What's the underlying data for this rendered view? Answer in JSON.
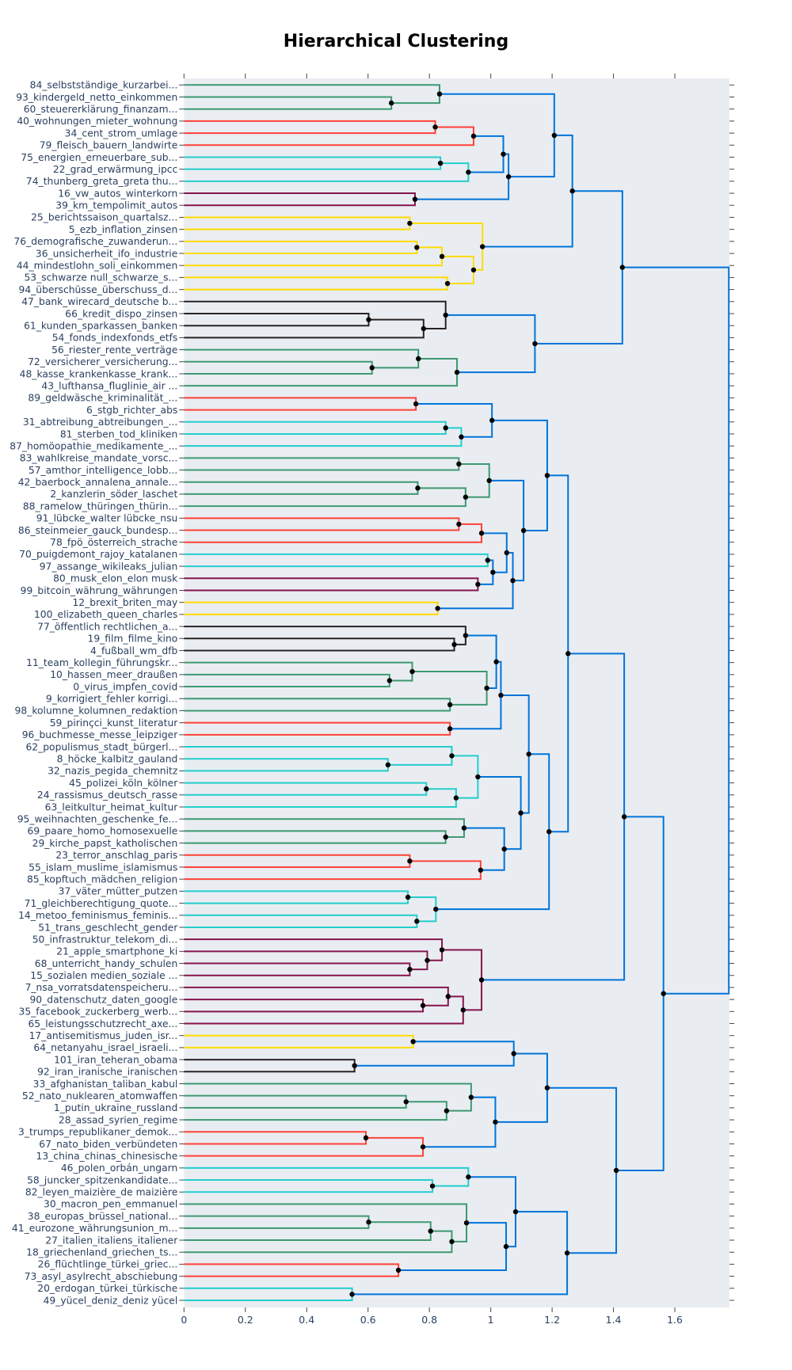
{
  "chart_data": {
    "type": "dendrogram",
    "title": "Hierarchical Clustering",
    "orientation": "horizontal",
    "xlim": [
      0,
      1.778
    ],
    "x_ticks": [
      "0",
      "0.2",
      "0.4",
      "0.6",
      "0.8",
      "1",
      "1.2",
      "1.4",
      "1.6"
    ],
    "x_tick_values": [
      0,
      0.2,
      0.4,
      0.6,
      0.8,
      1.0,
      1.2,
      1.4,
      1.6
    ],
    "grid": false,
    "plot_background": "#e9edf2",
    "colors": {
      "b": "#0074d9",
      "g": "#3d9970",
      "r": "#ff4136",
      "c": "#23cdcd",
      "p": "#85144b",
      "y": "#ffdc00",
      "k": "#282323",
      "dot": "#000000"
    },
    "leaves": [
      "84_selbstständige_kurzarbei...",
      "93_kindergeld_netto_einkommen",
      "60_steuererklärung_finanzam...",
      "40_wohnungen_mieter_wohnung",
      "34_cent_strom_umlage",
      "79_fleisch_bauern_landwirte",
      "75_energien_erneuerbare_sub...",
      "22_grad_erwärmung_ipcc",
      "74_thunberg_greta_greta thu...",
      "16_vw_autos_winterkorn",
      "39_km_tempolimit_autos",
      "25_berichtssaison_quartalsz...",
      "5_ezb_inflation_zinsen",
      "76_demografische_zuwanderun...",
      "36_unsicherheit_ifo_industrie",
      "44_mindestlohn_soli_einkommen",
      "53_schwarze null_schwarze_s...",
      "94_überschüsse_überschuss_d...",
      "47_bank_wirecard_deutsche b...",
      "66_kredit_dispo_zinsen",
      "61_kunden_sparkassen_banken",
      "54_fonds_indexfonds_etfs",
      "56_riester_rente_verträge",
      "72_versicherer_versicherung...",
      "48_kasse_krankenkasse_krank...",
      "43_lufthansa_fluglinie_air ...",
      "89_geldwäsche_kriminalität_...",
      "6_stgb_richter_abs",
      "31_abtreibung_abtreibungen_...",
      "81_sterben_tod_kliniken",
      "87_homöopathie_medikamente_...",
      "83_wahlkreise_mandate_vorsc...",
      "57_amthor_intelligence_lobb...",
      "42_baerbock_annalena_annale...",
      "2_kanzlerin_söder_laschet",
      "88_ramelow_thüringen_thürin...",
      "91_lübcke_walter lübcke_nsu",
      "86_steinmeier_gauck_bundesp...",
      "78_fpö_österreich_strache",
      "70_puigdemont_rajoy_katalanen",
      "97_assange_wikileaks_julian",
      "80_musk_elon_elon musk",
      "99_bitcoin_währung_währungen",
      "12_brexit_briten_may",
      "100_elizabeth_queen_charles",
      "77_öffentlich rechtlichen_a...",
      "19_film_filme_kino",
      "4_fußball_wm_dfb",
      "11_team_kollegin_führungskr...",
      "10_hassen_meer_draußen",
      "0_virus_impfen_covid",
      "9_korrigiert_fehler korrigi...",
      "98_kolumne_kolumnen_redaktion",
      "59_pirinçci_kunst_literatur",
      "96_buchmesse_messe_leipziger",
      "62_populismus_stadt_bürgerl...",
      "8_höcke_kalbitz_gauland",
      "32_nazis_pegida_chemnitz",
      "45_polizei_köln_kölner",
      "24_rassismus_deutsch_rasse",
      "63_leitkultur_heimat_kultur",
      "95_weihnachten_geschenke_fe...",
      "69_paare_homo_homosexuelle",
      "29_kirche_papst_katholischen",
      "23_terror_anschlag_paris",
      "55_islam_muslime_islamismus",
      "85_kopftuch_mädchen_religion",
      "37_väter_mütter_putzen",
      "71_gleichberechtigung_quote...",
      "14_metoo_feminismus_feminis...",
      "51_trans_geschlecht_gender",
      "50_infrastruktur_telekom_di...",
      "21_apple_smartphone_ki",
      "68_unterricht_handy_schulen",
      "15_sozialen medien_soziale ...",
      "7_nsa_vorratsdatenspeicheru...",
      "90_datenschutz_daten_google",
      "35_facebook_zuckerberg_werb...",
      "65_leistungsschutzrecht_axe...",
      "17_antisemitismus_juden_isr...",
      "64_netanyahu_israel_israeli...",
      "101_iran_teheran_obama",
      "92_iran_iranische_iranischen",
      "33_afghanistan_taliban_kabul",
      "52_nato_nuklearen_atomwaffen",
      "1_putin_ukraine_russland",
      "28_assad_syrien_regime",
      "3_trumps_republikaner_demok...",
      "67_nato_biden_verbündeten",
      "13_china_chinas_chinesische",
      "46_polen_orbán_ungarn",
      "58_juncker_spitzenkandidate...",
      "82_leyen_maizière_de maizière",
      "30_macron_pen_emmanuel",
      "38_europas_brüssel_national...",
      "41_eurozone_währungsunion_m...",
      "27_italien_italiens_italiener",
      "18_griechenland_griechen_ts...",
      "26_flüchtlinge_türkei_griec...",
      "73_asyl_asylrecht_abschiebung",
      "20_erdogan_türkei_türkische",
      "49_yücel_deniz_deniz yücel"
    ],
    "tree": [
      1.776,
      "b",
      [
        1.429,
        "b",
        [
          1.266,
          "b",
          [
            1.207,
            "b",
            [
              0.833,
              "g",
              0,
              [
                0.676,
                "g",
                1,
                2
              ]
            ],
            [
              1.058,
              "b",
              [
                1.041,
                "b",
                [
                  0.944,
                  "r",
                  [
                    0.819,
                    "r",
                    3,
                    4
                  ],
                  5
                ],
                [
                  0.927,
                  "c",
                  [
                    0.836,
                    "c",
                    6,
                    7
                  ],
                  8
                ]
              ],
              [
                0.753,
                "p",
                9,
                10
              ]
            ]
          ],
          [
            0.973,
            "y",
            [
              0.736,
              "y",
              11,
              12
            ],
            [
              0.944,
              "y",
              [
                0.841,
                "y",
                [
                  0.759,
                  "y",
                  13,
                  14
                ],
                15
              ],
              [
                0.859,
                "y",
                16,
                17
              ]
            ]
          ]
        ],
        [
          1.144,
          "b",
          [
            0.853,
            "k",
            18,
            [
              0.781,
              "k",
              [
                0.602,
                "k",
                19,
                20
              ],
              21
            ]
          ],
          [
            0.89,
            "g",
            [
              0.764,
              "g",
              22,
              [
                0.613,
                "g",
                23,
                24
              ]
            ],
            25
          ]
        ]
      ],
      [
        1.563,
        "b",
        [
          1.435,
          "b",
          [
            1.252,
            "b",
            [
              1.184,
              "b",
              [
                1.004,
                "b",
                [
                  0.756,
                  "r",
                  26,
                  27
                ],
                [
                  0.904,
                  "c",
                  [
                    0.853,
                    "c",
                    28,
                    29
                  ],
                  30
                ]
              ],
              [
                1.107,
                "b",
                [
                  0.995,
                  "g",
                  [
                    0.896,
                    "g",
                    31,
                    32
                  ],
                  [
                    0.918,
                    "g",
                    [
                      0.762,
                      "g",
                      33,
                      34
                    ],
                    35
                  ]
                ],
                [
                  1.072,
                  "b",
                  [
                    1.052,
                    "b",
                    [
                      0.97,
                      "r",
                      [
                        0.896,
                        "r",
                        36,
                        37
                      ],
                      38
                    ],
                    [
                      1.007,
                      "b",
                      [
                        0.99,
                        "c",
                        39,
                        40
                      ],
                      [
                        0.958,
                        "p",
                        41,
                        42
                      ]
                    ]
                  ],
                  [
                    0.827,
                    "y",
                    43,
                    44
                  ]
                ]
              ]
            ],
            [
              1.19,
              "b",
              [
                1.124,
                "b",
                [
                  1.033,
                  "b",
                  [
                    1.018,
                    "b",
                    [
                      0.918,
                      "k",
                      45,
                      [
                        0.881,
                        "k",
                        46,
                        47
                      ]
                    ],
                    [
                      0.987,
                      "g",
                      [
                        0.744,
                        "g",
                        48,
                        [
                          0.67,
                          "g",
                          49,
                          50
                        ]
                      ],
                      [
                        0.867,
                        "g",
                        51,
                        52
                      ]
                    ]
                  ],
                  [
                    0.867,
                    "r",
                    53,
                    54
                  ]
                ],
                [
                  1.098,
                  "b",
                  [
                    0.958,
                    "c",
                    [
                      0.873,
                      "c",
                      55,
                      [
                        0.665,
                        "c",
                        56,
                        57
                      ]
                    ],
                    [
                      0.887,
                      "c",
                      [
                        0.79,
                        "c",
                        58,
                        59
                      ],
                      60
                    ]
                  ],
                  [
                    1.044,
                    "b",
                    [
                      0.913,
                      "g",
                      61,
                      [
                        0.853,
                        "g",
                        62,
                        63
                      ]
                    ],
                    [
                      0.967,
                      "r",
                      [
                        0.736,
                        "r",
                        64,
                        65
                      ],
                      66
                    ]
                  ]
                ]
              ],
              [
                0.821,
                "c",
                [
                  0.73,
                  "c",
                  67,
                  68
                ],
                [
                  0.759,
                  "c",
                  69,
                  70
                ]
              ]
            ]
          ],
          [
            0.97,
            "p",
            [
              0.841,
              "p",
              71,
              [
                0.793,
                "p",
                72,
                [
                  0.736,
                  "p",
                  73,
                  74
                ]
              ]
            ],
            [
              0.91,
              "p",
              [
                0.861,
                "p",
                75,
                [
                  0.779,
                  "p",
                  76,
                  77
                ]
              ],
              78
            ]
          ]
        ],
        [
          1.409,
          "b",
          [
            1.184,
            "b",
            [
              1.075,
              "b",
              [
                0.747,
                "y",
                79,
                80
              ],
              [
                0.556,
                "k",
                81,
                82
              ]
            ],
            [
              1.015,
              "b",
              [
                0.936,
                "g",
                83,
                [
                  0.856,
                  "g",
                  [
                    0.724,
                    "g",
                    84,
                    85
                  ],
                  86
                ]
              ],
              [
                0.779,
                "r",
                [
                  0.593,
                  "r",
                  87,
                  88
                ],
                89
              ]
            ]
          ],
          [
            1.249,
            "b",
            [
              1.081,
              "b",
              [
                0.927,
                "c",
                90,
                [
                  0.81,
                  "c",
                  91,
                  92
                ]
              ],
              [
                1.05,
                "b",
                [
                  0.921,
                  "g",
                  93,
                  [
                    0.873,
                    "g",
                    [
                      0.804,
                      "g",
                      [
                        0.602,
                        "g",
                        94,
                        95
                      ],
                      96
                    ],
                    97
                  ]
                ],
                [
                  0.699,
                  "r",
                  98,
                  99
                ]
              ]
            ],
            [
              0.548,
              "c",
              100,
              101
            ]
          ]
        ]
      ]
    ]
  }
}
